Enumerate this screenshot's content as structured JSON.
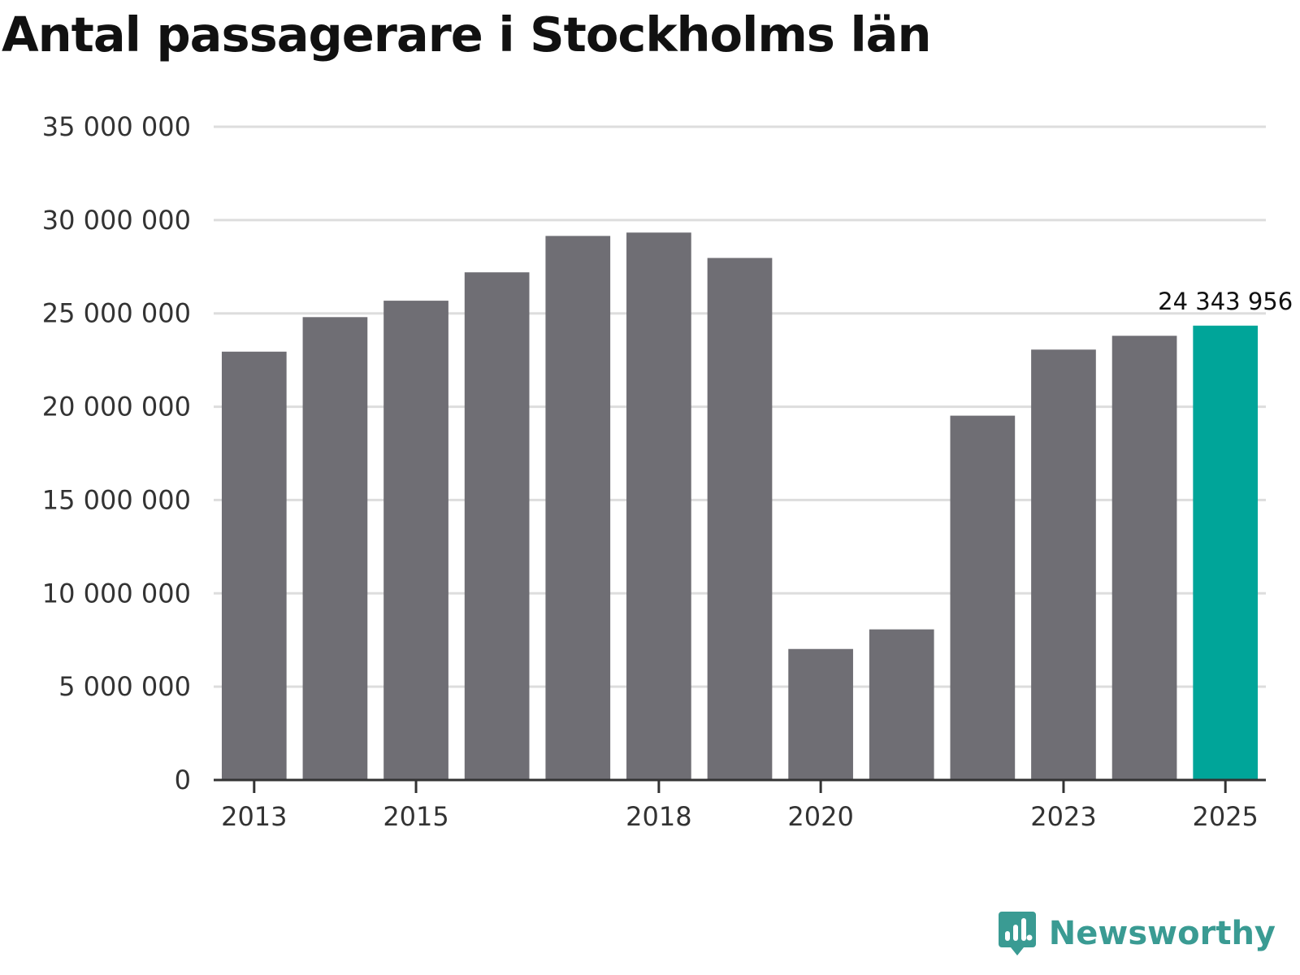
{
  "title": "Antal passagerare i Stockholms län",
  "brand": {
    "name": "Newsworthy",
    "icon": "newsworthy-logo-icon",
    "color": "#3a9b93"
  },
  "chart_data": {
    "type": "bar",
    "categories": [
      "2013",
      "2014",
      "2015",
      "2016",
      "2017",
      "2018",
      "2019",
      "2020",
      "2021",
      "2022",
      "2023",
      "2024",
      "2025"
    ],
    "values": [
      22950000,
      24800000,
      25680000,
      27200000,
      29150000,
      29330000,
      27970000,
      7020000,
      8070000,
      19520000,
      23060000,
      23800000,
      24343956
    ],
    "x_tick_labels": [
      "2013",
      "2015",
      "2018",
      "2020",
      "2023",
      "2025"
    ],
    "y_ticks": [
      0,
      5000000,
      10000000,
      15000000,
      20000000,
      25000000,
      30000000,
      35000000
    ],
    "y_tick_labels": [
      "0",
      "5 000 000",
      "10 000 000",
      "15 000 000",
      "20 000 000",
      "25 000 000",
      "30 000 000",
      "35 000 000"
    ],
    "ylim": [
      0,
      35000000
    ],
    "highlight": {
      "category": "2025",
      "label": "24 343 956"
    },
    "colors": {
      "bar": "#6f6e74",
      "highlight": "#00a599",
      "grid": "#dddddd",
      "axis": "#333333"
    },
    "grid": true,
    "legend": "none"
  }
}
